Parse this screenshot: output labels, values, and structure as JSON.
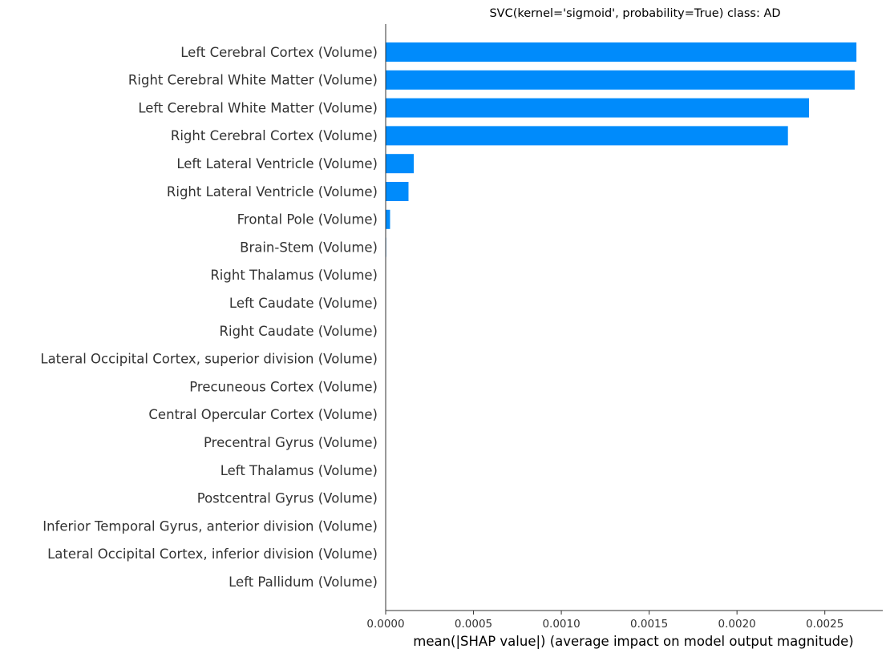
{
  "chart_data": {
    "type": "bar",
    "orientation": "horizontal",
    "title": "SVC(kernel='sigmoid', probability=True) class: AD",
    "xlabel": "mean(|SHAP value|) (average impact on model output magnitude)",
    "ylabel": "",
    "xlim": [
      0,
      0.00283
    ],
    "x_ticks": [
      0,
      0.0005,
      0.001,
      0.0015,
      0.002,
      0.0025
    ],
    "x_tick_labels": [
      "0.0000",
      "0.0005",
      "0.0010",
      "0.0015",
      "0.0020",
      "0.0025"
    ],
    "grid": false,
    "bar_color": "#008bfb",
    "categories": [
      "Left Cerebral Cortex  (Volume)",
      "Right Cerebral White Matter (Volume)",
      "Left Cerebral White Matter (Volume)",
      "Right Cerebral Cortex (Volume)",
      "Left Lateral Ventricle (Volume)",
      "Right Lateral Ventricle (Volume)",
      "Frontal Pole (Volume)",
      "Brain-Stem (Volume)",
      "Right Thalamus (Volume)",
      "Left Caudate (Volume)",
      "Right Caudate (Volume)",
      "Lateral Occipital Cortex, superior division (Volume)",
      "Precuneous Cortex (Volume)",
      "Central Opercular Cortex (Volume)",
      "Precentral Gyrus (Volume)",
      "Left Thalamus (Volume)",
      "Postcentral Gyrus (Volume)",
      "Inferior Temporal Gyrus, anterior division (Volume)",
      "Lateral Occipital Cortex, inferior division (Volume)",
      "Left Pallidum (Volume)"
    ],
    "values": [
      0.00268,
      0.00267,
      0.00241,
      0.00229,
      0.00016,
      0.00013,
      2.5e-05,
      3e-06,
      0.0,
      0.0,
      0.0,
      0.0,
      0.0,
      0.0,
      0.0,
      0.0,
      0.0,
      0.0,
      0.0,
      0.0
    ]
  }
}
